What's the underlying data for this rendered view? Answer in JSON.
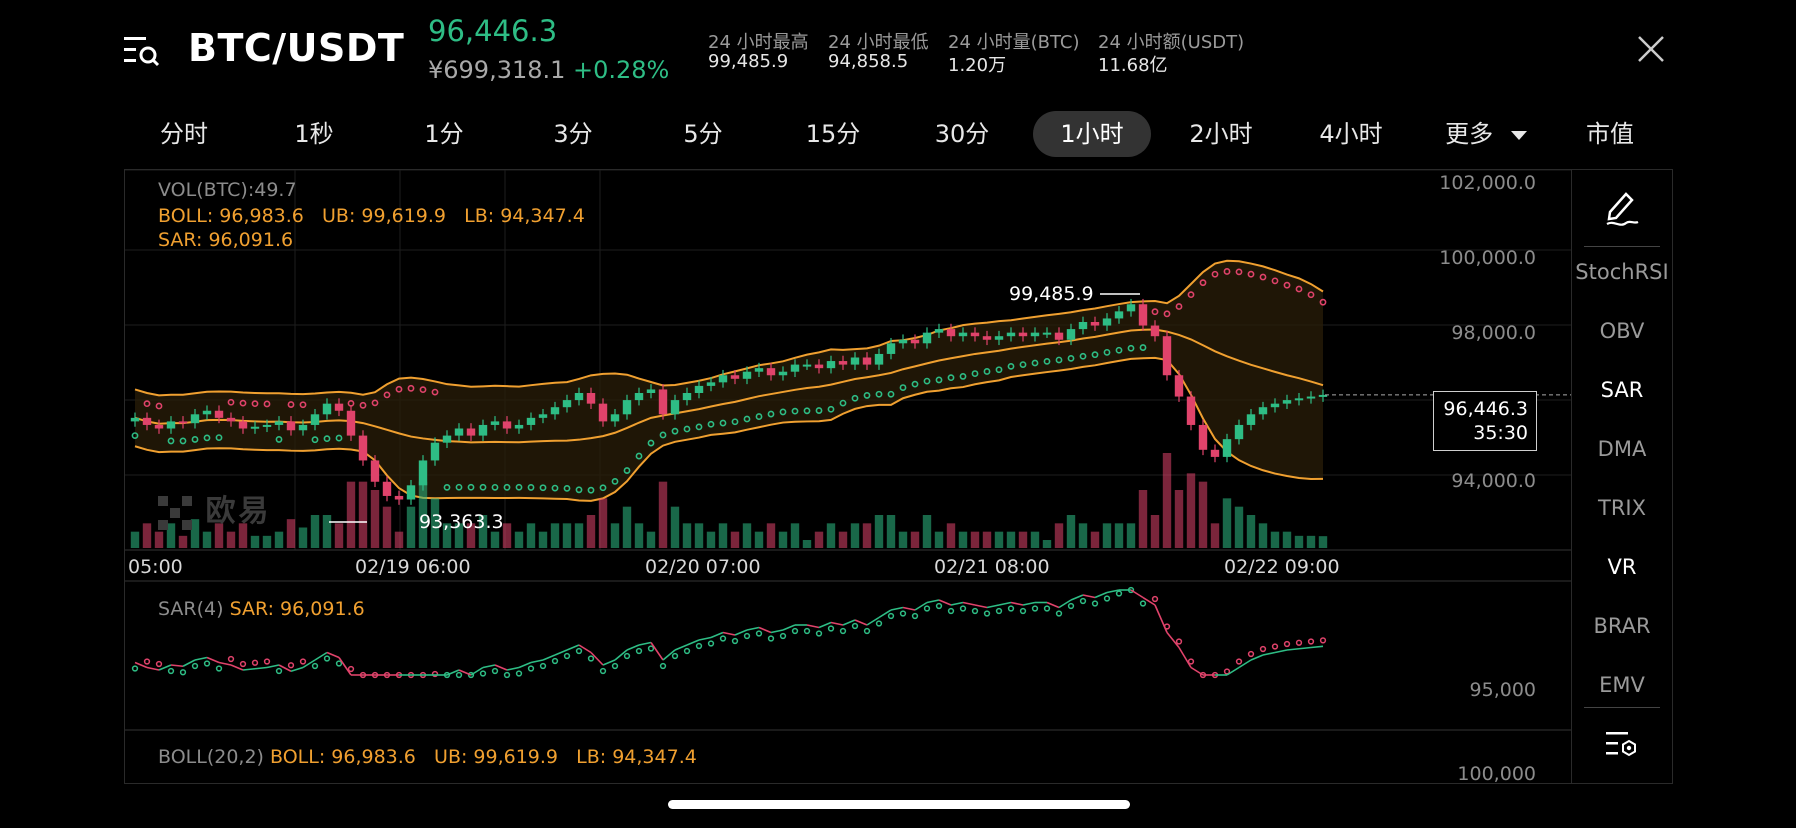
{
  "header": {
    "symbol": "BTC/USDT",
    "last_price": "96,446.3",
    "cny_price": "¥699,318.1",
    "change_pct": "+0.28%",
    "stats": [
      {
        "label": "24 小时最高",
        "value": "99,485.9"
      },
      {
        "label": "24 小时最低",
        "value": "94,858.5"
      },
      {
        "label": "24 小时量(BTC)",
        "value": "1.20万"
      },
      {
        "label": "24 小时额(USDT)",
        "value": "11.68亿"
      }
    ]
  },
  "tabs": [
    "分时",
    "1秒",
    "1分",
    "3分",
    "5分",
    "15分",
    "30分",
    "1小时",
    "2小时",
    "4小时",
    "更多",
    "市值"
  ],
  "active_tab": "1小时",
  "main_legend": {
    "vol": "VOL(BTC):49.7",
    "boll": "BOLL: 96,983.6",
    "ub": "UB: 99,619.9",
    "lb": "LB: 94,347.4",
    "sar": "SAR: 96,091.6"
  },
  "y_axis_main": [
    "102,000.0",
    "100,000.0",
    "98,000.0",
    "94,000.0"
  ],
  "x_axis": [
    "05:00",
    "02/19 06:00",
    "02/20 07:00",
    "02/21 08:00",
    "02/22 09:00"
  ],
  "annotations": {
    "high": "99,485.9",
    "low": "93,363.3"
  },
  "price_tag": {
    "price": "96,446.3",
    "countdown": "35:30"
  },
  "watermark": "欧易",
  "sar_panel": {
    "label": "SAR(4)",
    "value": "SAR: 96,091.6",
    "axis": "95,000"
  },
  "boll_panel": {
    "label": "BOLL(20,2)",
    "boll": "BOLL: 96,983.6",
    "ub": "UB: 99,619.9",
    "lb": "LB: 94,347.4",
    "axis": "100,000"
  },
  "side_indicators": [
    "StochRSI",
    "OBV",
    "SAR",
    "DMA",
    "TRIX",
    "VR",
    "BRAR",
    "EMV"
  ],
  "side_active": [
    "SAR",
    "VR"
  ],
  "colors": {
    "up": "#2ebd85",
    "down": "#e0436b",
    "boll": "#f0a030",
    "sar_up": "#2ebd85",
    "sar_down": "#e0436b"
  },
  "chart_data": {
    "type": "candlestick",
    "interval": "1小时",
    "ylim": [
      92500,
      102500
    ],
    "grid": true,
    "closes": [
      95800,
      95600,
      95500,
      95700,
      95650,
      95900,
      96000,
      95800,
      95700,
      95500,
      95550,
      95600,
      95700,
      95450,
      95600,
      95900,
      96200,
      96000,
      95300,
      94600,
      94000,
      93600,
      93500,
      93900,
      94600,
      95100,
      95300,
      95500,
      95300,
      95600,
      95700,
      95500,
      95600,
      95800,
      95900,
      96100,
      96300,
      96500,
      96200,
      95700,
      95900,
      96300,
      96500,
      96600,
      95900,
      96300,
      96500,
      96700,
      96800,
      97000,
      96900,
      97100,
      97200,
      97000,
      97100,
      97300,
      97300,
      97200,
      97400,
      97300,
      97500,
      97300,
      97600,
      97900,
      98000,
      97900,
      98200,
      98300,
      98100,
      98200,
      98100,
      98000,
      98100,
      98200,
      98100,
      98200,
      98200,
      98000,
      98300,
      98500,
      98400,
      98600,
      98800,
      99000,
      98400,
      98100,
      97000,
      96400,
      95600,
      94900,
      94700,
      95200,
      95600,
      95900,
      96100,
      96200,
      96300,
      96350,
      96400,
      96446
    ]
  }
}
